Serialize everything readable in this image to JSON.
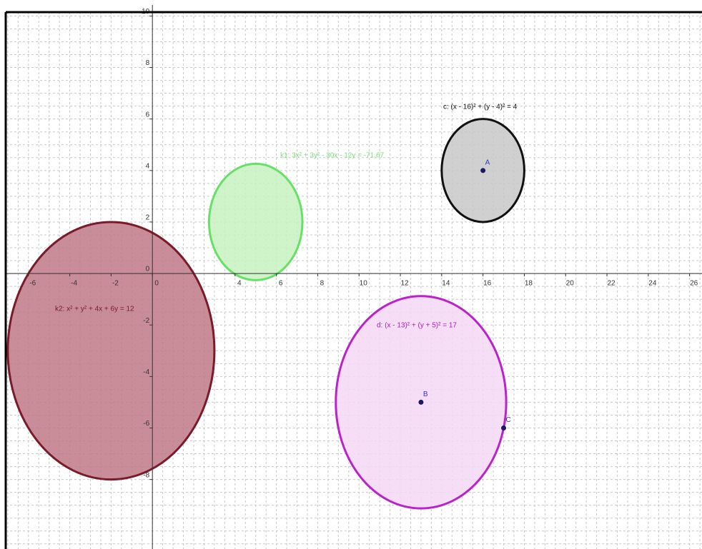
{
  "axes": {
    "xlim": [
      -7.1,
      26.6
    ],
    "ylim": [
      -10.7,
      10.15
    ],
    "xticks": [
      -6,
      -4,
      -2,
      0,
      4,
      6,
      8,
      10,
      12,
      14,
      16,
      18,
      20,
      22,
      24,
      26
    ],
    "yticks": [
      10,
      8,
      6,
      4,
      2,
      0,
      -2,
      -4,
      -6,
      -8
    ]
  },
  "circles": [
    {
      "label": "k2: x² + y² + 4x + 6y = 12",
      "center": [
        -2,
        -3
      ],
      "radius": 5,
      "stroke": "#7a1a2a",
      "fill": "#c07887"
    },
    {
      "label": "k1: 3x² + 3y² - 30x - 12y = -71.67",
      "center": [
        5,
        2
      ],
      "radius": 2.26,
      "stroke": "#66e066",
      "fill": "#c8f2c0"
    },
    {
      "label": "c: (x - 16)² + (y - 4)² = 4",
      "center": [
        16,
        4
      ],
      "radius": 2,
      "stroke": "#111111",
      "fill": "#c8c8c8"
    },
    {
      "label": "d: (x - 13)² + (y + 5)² = 17",
      "center": [
        13,
        -5
      ],
      "radius": 4.123,
      "stroke": "#bb22cc",
      "fill": "#f6d8f6"
    }
  ],
  "points": [
    {
      "label": "A",
      "x": 16,
      "y": 4
    },
    {
      "label": "B",
      "x": 13,
      "y": -5
    },
    {
      "label": "C",
      "x": 17,
      "y": -6
    }
  ]
}
